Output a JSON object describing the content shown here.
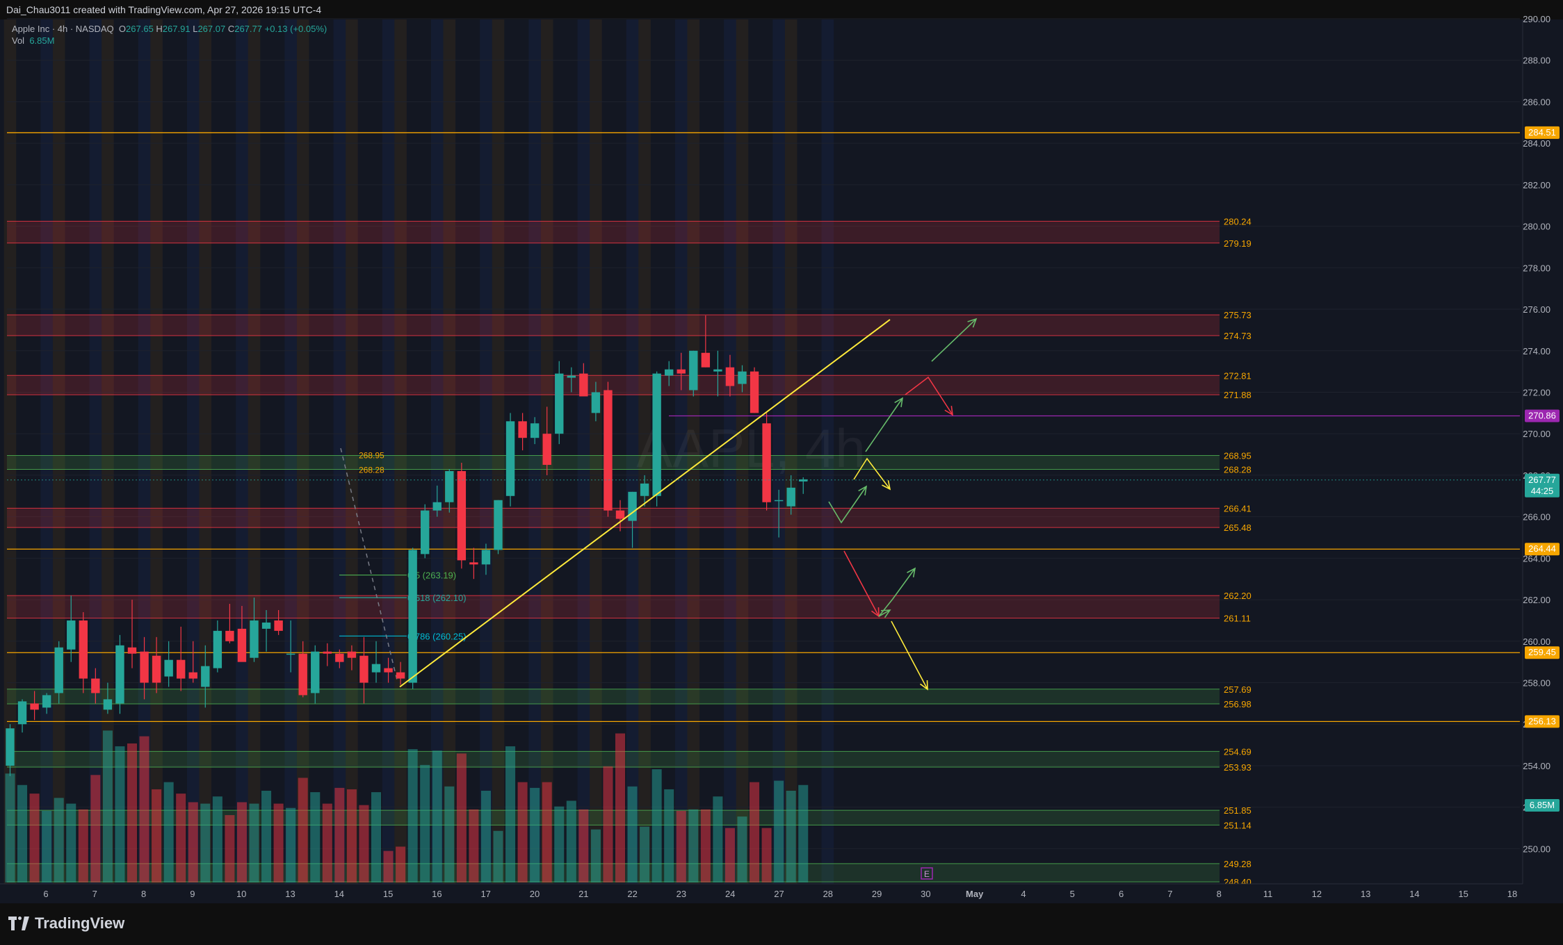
{
  "header": {
    "credit": "Dai_Chau3011 created with TradingView.com, Apr 27, 2026 19:15 UTC-4",
    "symbol": "Apple Inc · 4h · NASDAQ",
    "o_label": "O",
    "o": "267.65",
    "h_label": "H",
    "h": "267.91",
    "l_label": "L",
    "l": "267.07",
    "c_label": "C",
    "c": "267.77",
    "change": "+0.13 (+0.05%)",
    "vol_label": "Vol",
    "vol": "6.85M"
  },
  "footer": {
    "brand": "TradingView"
  },
  "colors": {
    "background": "#131722",
    "up": "#26a69a",
    "down": "#f23645",
    "zone_red": "#f23645",
    "zone_green": "#4caf50",
    "orange_line": "#f7a600",
    "purple_line": "#9c27b0",
    "trendline": "#ffeb3b",
    "arrow_green": "#66bb6a",
    "arrow_red": "#f23645",
    "arrow_yellow": "#ffeb3b"
  },
  "chart_data": {
    "type": "candlestick",
    "title": "",
    "watermark": "AAPL, 4h",
    "ylim": [
      248.0,
      290.5
    ],
    "y_ticks": [
      "250.00",
      "252.00",
      "254.00",
      "256.00",
      "258.00",
      "260.00",
      "262.00",
      "264.00",
      "266.00",
      "268.00",
      "270.00",
      "272.00",
      "274.00",
      "276.00",
      "278.00",
      "280.00",
      "282.00",
      "284.00",
      "286.00",
      "288.00",
      "290.00"
    ],
    "x_ticks": [
      "6",
      "7",
      "8",
      "9",
      "10",
      "13",
      "14",
      "15",
      "16",
      "17",
      "20",
      "21",
      "22",
      "23",
      "24",
      "27",
      "28",
      "29",
      "30",
      "May",
      "4",
      "5",
      "6",
      "7",
      "8",
      "11",
      "12",
      "13",
      "14",
      "15",
      "18"
    ],
    "last_price": {
      "value": "267.77",
      "countdown": "44:25"
    },
    "volume_badge": "6.85M",
    "candles": [
      [
        254.0,
        256.0,
        253.5,
        255.8
      ],
      [
        256.0,
        257.2,
        255.6,
        257.1
      ],
      [
        257.0,
        257.6,
        256.2,
        256.7
      ],
      [
        256.8,
        257.5,
        256.5,
        257.4
      ],
      [
        257.5,
        260.0,
        257.0,
        259.7
      ],
      [
        259.6,
        262.2,
        259.0,
        261.0
      ],
      [
        261.0,
        261.4,
        257.5,
        258.2
      ],
      [
        258.2,
        258.7,
        257.0,
        257.5
      ],
      [
        256.7,
        258.0,
        256.5,
        257.2
      ],
      [
        257.0,
        260.3,
        256.5,
        259.8
      ],
      [
        259.7,
        262.0,
        258.7,
        259.4
      ],
      [
        259.5,
        260.2,
        257.2,
        258.0
      ],
      [
        259.3,
        260.2,
        257.5,
        258.0
      ],
      [
        258.3,
        260.0,
        257.8,
        259.1
      ],
      [
        259.1,
        260.7,
        257.6,
        258.2
      ],
      [
        258.5,
        260.0,
        258.0,
        258.2
      ],
      [
        257.8,
        259.8,
        256.8,
        258.8
      ],
      [
        258.7,
        261.0,
        258.5,
        260.5
      ],
      [
        260.5,
        261.8,
        259.9,
        260.0
      ],
      [
        260.6,
        261.7,
        259.3,
        259.0
      ],
      [
        259.2,
        262.1,
        259.0,
        261.0
      ],
      [
        260.6,
        261.5,
        259.5,
        260.9
      ],
      [
        261.0,
        261.5,
        260.3,
        260.5
      ],
      [
        259.4,
        261.0,
        258.5,
        259.4
      ],
      [
        259.4,
        260.0,
        257.3,
        257.4
      ],
      [
        257.5,
        259.8,
        257.0,
        259.5
      ],
      [
        259.5,
        259.9,
        258.8,
        259.4
      ],
      [
        259.4,
        259.6,
        258.7,
        259.0
      ],
      [
        259.5,
        259.8,
        258.6,
        259.2
      ],
      [
        259.3,
        260.2,
        257.0,
        258.0
      ],
      [
        258.5,
        260.0,
        258.0,
        258.9
      ],
      [
        258.7,
        259.2,
        258.0,
        258.5
      ],
      [
        258.5,
        259.0,
        257.9,
        258.2
      ],
      [
        258.0,
        264.5,
        257.7,
        264.4
      ],
      [
        264.2,
        266.6,
        264.0,
        266.3
      ],
      [
        266.3,
        267.5,
        266.0,
        266.7
      ],
      [
        266.7,
        268.3,
        266.2,
        268.2
      ],
      [
        268.2,
        268.6,
        263.5,
        263.9
      ],
      [
        263.8,
        264.5,
        263.0,
        263.7
      ],
      [
        263.7,
        264.7,
        263.2,
        264.4
      ],
      [
        264.4,
        266.8,
        264.2,
        266.8
      ],
      [
        267.0,
        271.0,
        266.5,
        270.6
      ],
      [
        270.6,
        271.0,
        269.2,
        269.8
      ],
      [
        269.8,
        270.8,
        269.5,
        270.5
      ],
      [
        270.0,
        271.3,
        268.0,
        268.5
      ],
      [
        270.0,
        273.5,
        269.5,
        272.9
      ],
      [
        272.7,
        273.2,
        272.0,
        272.8
      ],
      [
        272.9,
        273.4,
        272.0,
        271.8
      ],
      [
        271.0,
        272.5,
        270.6,
        272.0
      ],
      [
        272.1,
        272.5,
        266.0,
        266.3
      ],
      [
        266.3,
        266.8,
        265.3,
        265.9
      ],
      [
        265.8,
        267.2,
        264.5,
        267.2
      ],
      [
        267.0,
        268.0,
        266.5,
        267.6
      ],
      [
        267.0,
        273.0,
        266.5,
        272.9
      ],
      [
        272.8,
        273.5,
        272.3,
        273.1
      ],
      [
        273.1,
        273.9,
        272.1,
        272.9
      ],
      [
        272.1,
        274.0,
        271.8,
        274.0
      ],
      [
        273.9,
        275.7,
        273.2,
        273.2
      ],
      [
        273.0,
        274.0,
        271.8,
        273.1
      ],
      [
        273.2,
        273.8,
        271.8,
        272.3
      ],
      [
        272.4,
        273.3,
        272.0,
        273.0
      ],
      [
        273.0,
        273.2,
        271.0,
        271.0
      ],
      [
        270.5,
        271.0,
        266.3,
        266.7
      ],
      [
        266.8,
        267.3,
        265.0,
        266.8
      ],
      [
        266.5,
        268.0,
        266.1,
        267.4
      ],
      [
        267.7,
        267.9,
        267.1,
        267.8
      ]
    ],
    "volumes": [
      7.6,
      6.8,
      6.2,
      5.0,
      5.9,
      5.5,
      5.1,
      7.5,
      10.6,
      9.5,
      9.7,
      10.2,
      6.5,
      7.0,
      6.2,
      5.6,
      5.5,
      6.0,
      4.7,
      5.6,
      5.5,
      6.4,
      5.5,
      5.2,
      7.3,
      6.3,
      5.5,
      6.6,
      6.5,
      5.4,
      6.3,
      2.2,
      2.5,
      9.3,
      8.2,
      9.2,
      6.7,
      9.0,
      5.1,
      6.4,
      3.6,
      9.5,
      7.0,
      6.6,
      7.0,
      5.3,
      5.7,
      5.1,
      3.7,
      8.1,
      10.4,
      6.7,
      3.9,
      7.9,
      6.5,
      5.0,
      5.1,
      5.1,
      6.0,
      3.8,
      4.6,
      7.0,
      3.8,
      7.1,
      6.4,
      6.8
    ],
    "volume_max": 16.0,
    "zones": [
      {
        "type": "red",
        "top": 280.24,
        "bottom": 279.19
      },
      {
        "type": "red",
        "top": 275.73,
        "bottom": 274.73
      },
      {
        "type": "red",
        "top": 272.81,
        "bottom": 271.88
      },
      {
        "type": "green",
        "top": 268.95,
        "bottom": 268.28
      },
      {
        "type": "red",
        "top": 266.41,
        "bottom": 265.48
      },
      {
        "type": "red",
        "top": 262.2,
        "bottom": 261.11
      },
      {
        "type": "green",
        "top": 257.69,
        "bottom": 256.98
      },
      {
        "type": "green",
        "top": 254.69,
        "bottom": 253.93
      },
      {
        "type": "green",
        "top": 251.85,
        "bottom": 251.14
      },
      {
        "type": "green",
        "top": 249.28,
        "bottom": 248.4
      }
    ],
    "zone_labels": [
      "280.24",
      "279.19",
      "275.73",
      "274.73",
      "272.81",
      "271.88",
      "268.95",
      "268.28",
      "266.41",
      "265.48",
      "262.20",
      "261.11",
      "257.69",
      "256.98",
      "254.69",
      "253.93",
      "251.85",
      "251.14",
      "249.28",
      "248.40"
    ],
    "left_zone_labels": [
      "268.95",
      "268.28"
    ],
    "level_lines": [
      {
        "value": 284.51,
        "label": "284.51",
        "color": "orange"
      },
      {
        "value": 270.86,
        "label": "270.86",
        "color": "purple"
      },
      {
        "value": 264.44,
        "label": "264.44",
        "color": "orange"
      },
      {
        "value": 259.45,
        "label": "259.45",
        "color": "orange"
      },
      {
        "value": 256.13,
        "label": "256.13",
        "color": "orange"
      }
    ],
    "fib_levels": [
      {
        "label": "0.5 (263.19)",
        "value": 263.19
      },
      {
        "label": "0.618 (262.10)",
        "value": 262.1
      },
      {
        "label": "0.786 (260.25)",
        "value": 260.25
      }
    ],
    "earnings_marker": "E"
  }
}
